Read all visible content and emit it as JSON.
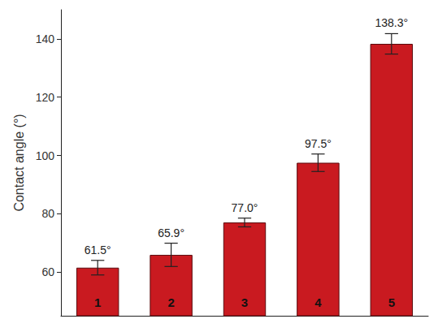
{
  "chart_data": {
    "type": "bar",
    "y_label": "Contact angle (°)",
    "categories": [
      "1",
      "2",
      "3",
      "4",
      "5"
    ],
    "values": [
      61.5,
      65.9,
      77.0,
      97.5,
      138.3
    ],
    "value_labels": [
      "61.5°",
      "65.9°",
      "77.0°",
      "97.5°",
      "138.3°"
    ],
    "errors": [
      2.5,
      4.0,
      1.5,
      3.0,
      3.5
    ],
    "color": "#c91a20",
    "ylim": [
      45,
      150
    ],
    "yticks": [
      60,
      80,
      100,
      120,
      140
    ],
    "grid": false,
    "data_labels": true,
    "tick_labels": "y"
  }
}
